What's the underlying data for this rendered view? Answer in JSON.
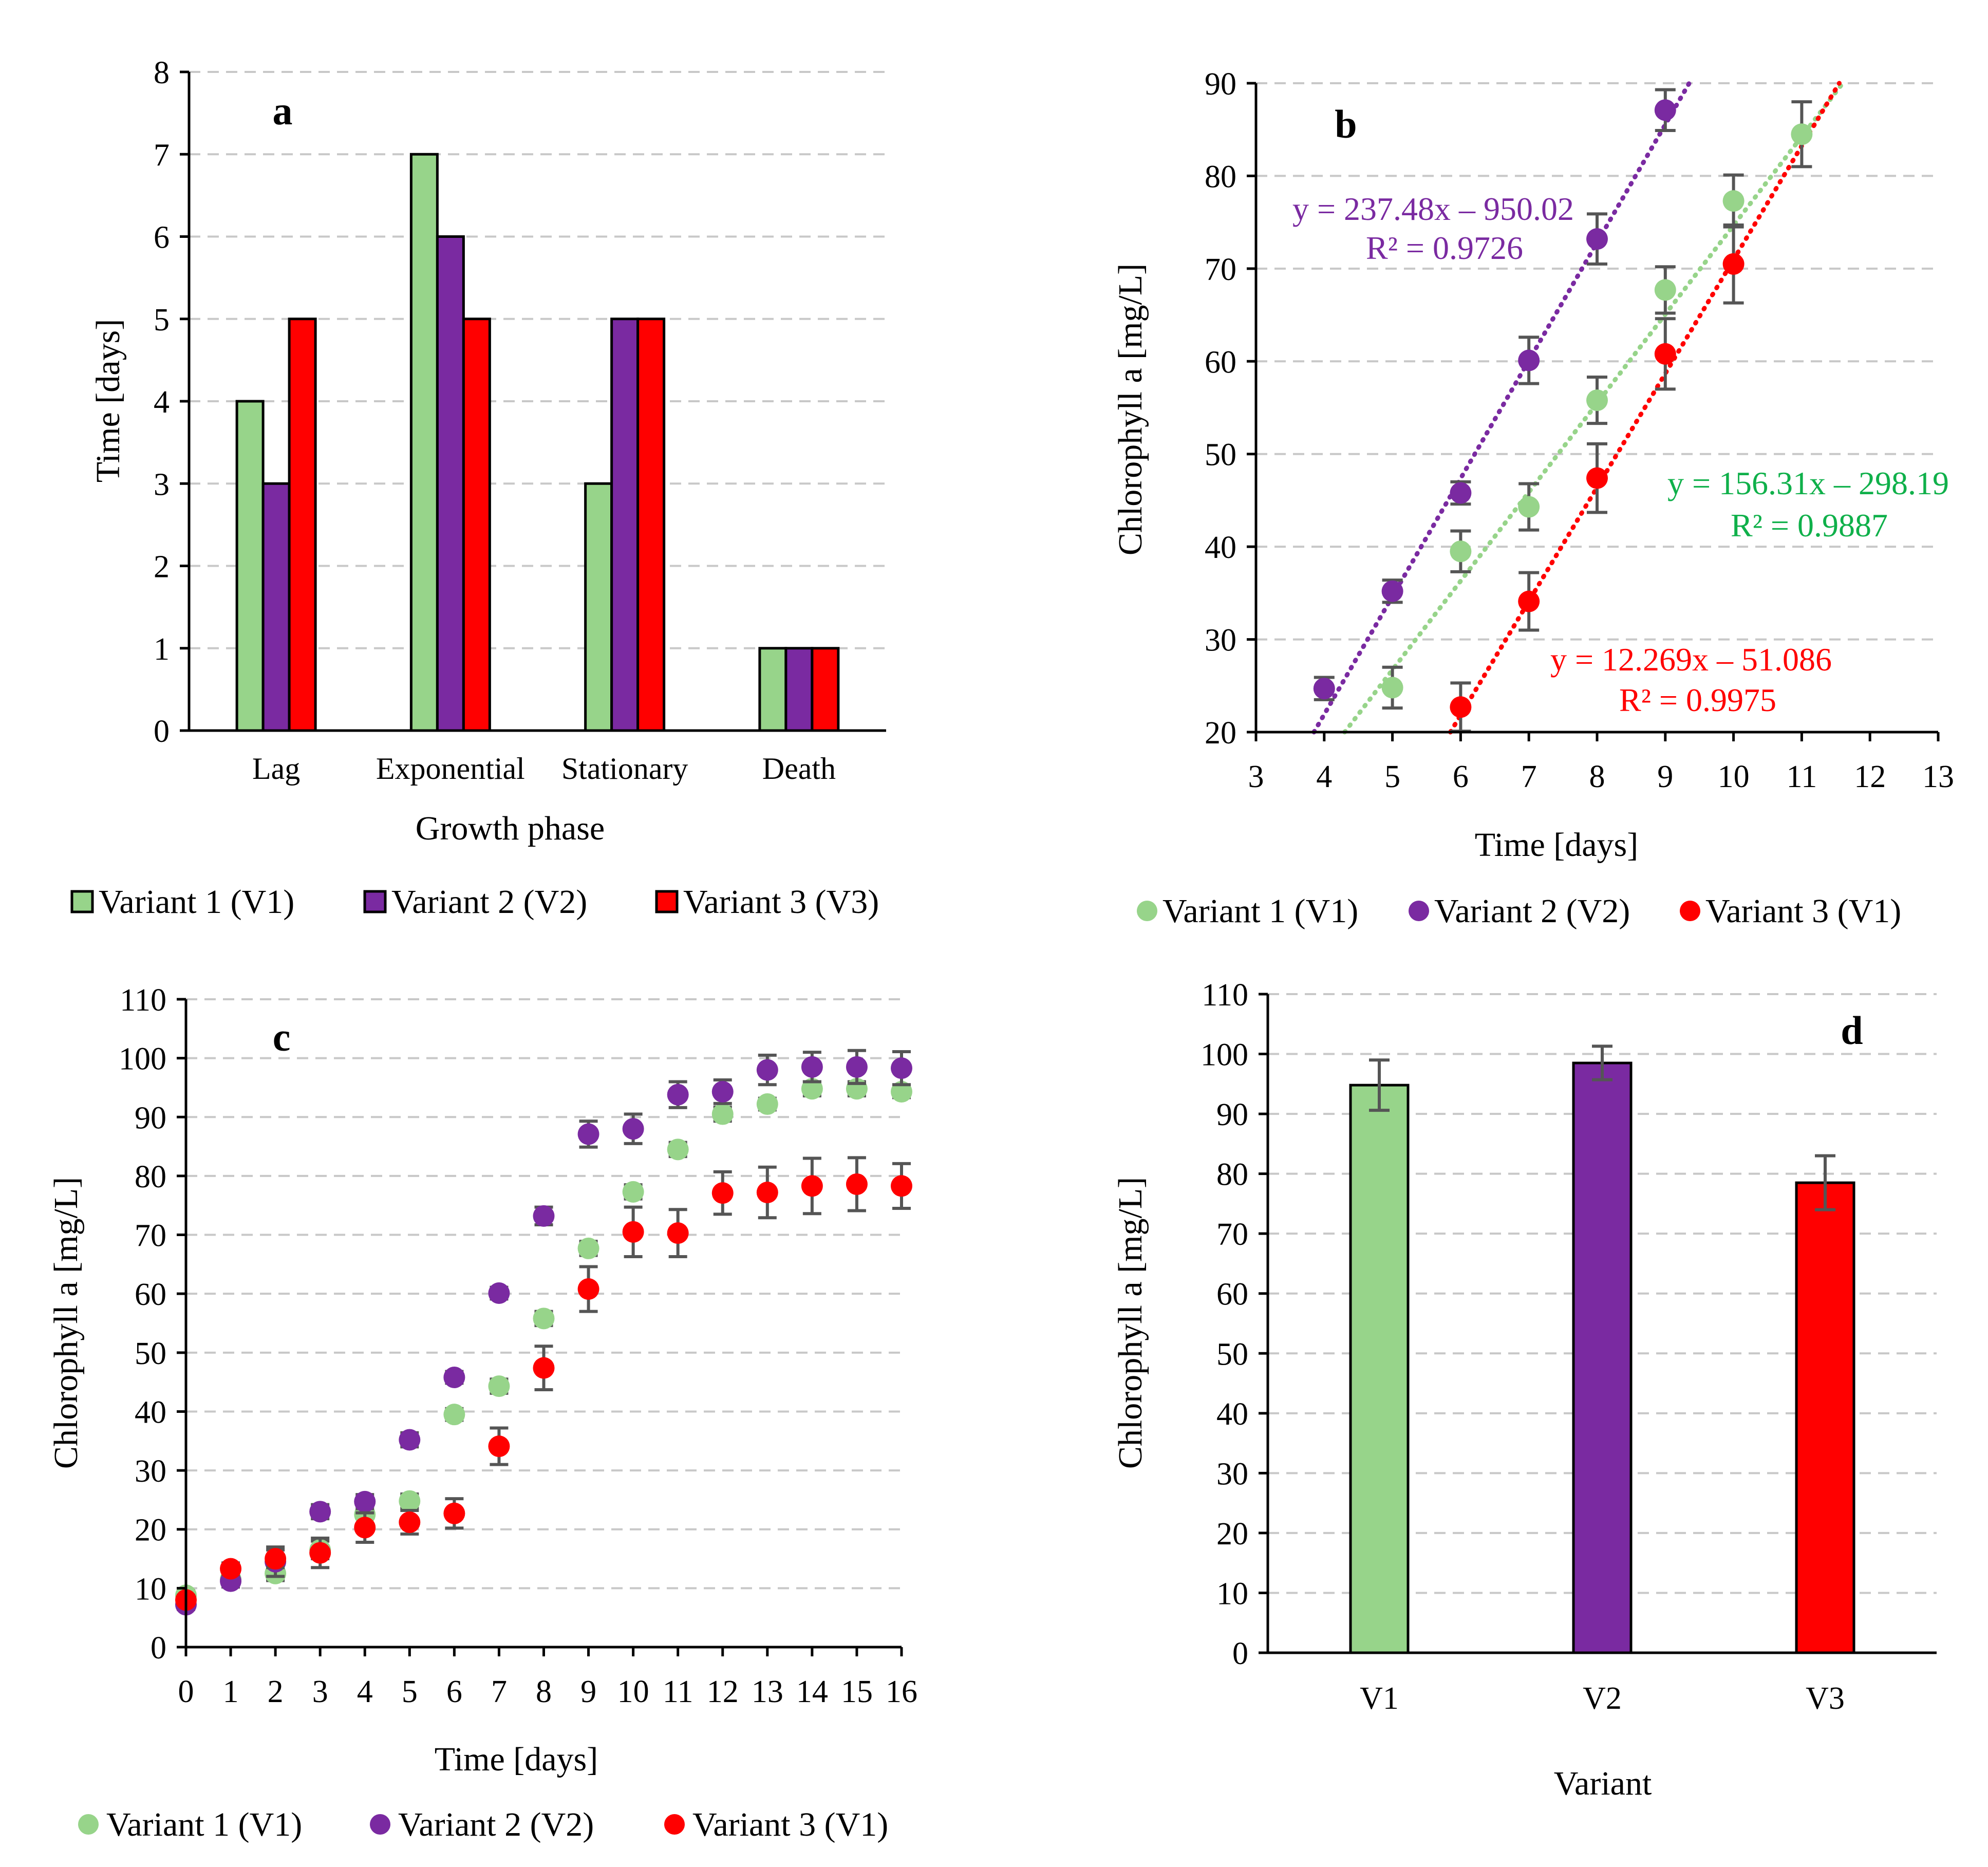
{
  "colors": {
    "v1": "#97d48a",
    "v2": "#7a2aa1",
    "v3": "#ff0000",
    "green_text": "#0fb04a",
    "err": "#555555",
    "grid": "#c8c8c8"
  },
  "chart_data": [
    {
      "id": "a",
      "panel_label": "a",
      "type": "bar",
      "xlabel": "Growth phase",
      "ylabel": "Time [days]",
      "ylim": [
        0,
        8
      ],
      "yticks": [
        "0",
        "1",
        "2",
        "3",
        "4",
        "5",
        "6",
        "7",
        "8"
      ],
      "categories": [
        "Lag",
        "Exponential",
        "Stationary",
        "Death"
      ],
      "series": [
        {
          "name": "Variant 1 (V1)",
          "values": [
            4,
            7,
            3,
            1
          ]
        },
        {
          "name": "Variant 2 (V2)",
          "values": [
            3,
            6,
            5,
            1
          ]
        },
        {
          "name": "Variant 3 (V3)",
          "values": [
            5,
            5,
            5,
            1
          ]
        }
      ],
      "legend": [
        "Variant 1 (V1)",
        "Variant 2 (V2)",
        "Variant 3 (V3)"
      ]
    },
    {
      "id": "b",
      "panel_label": "b",
      "type": "scatter",
      "xlabel": "Time [days]",
      "ylabel": "Chlorophyll a [mg/L]",
      "xlim": [
        3,
        13
      ],
      "ylim": [
        20,
        90
      ],
      "xticks": [
        "3",
        "4",
        "5",
        "6",
        "7",
        "8",
        "9",
        "10",
        "11",
        "12",
        "13"
      ],
      "yticks": [
        "20",
        "30",
        "40",
        "50",
        "60",
        "70",
        "80",
        "90"
      ],
      "series": [
        {
          "name": "Variant 1 (V1)",
          "x": [
            5,
            6,
            7,
            8,
            9,
            10,
            11
          ],
          "y": [
            24.8,
            39.5,
            44.3,
            55.8,
            67.7,
            77.3,
            84.5
          ],
          "err": [
            2.2,
            2.2,
            2.5,
            2.5,
            2.5,
            2.8,
            3.5
          ],
          "trend": [
            4.3,
            11.6
          ]
        },
        {
          "name": "Variant 2 (V2)",
          "x": [
            4,
            5,
            6,
            7,
            8,
            9
          ],
          "y": [
            24.7,
            35.2,
            45.8,
            60.1,
            73.2,
            87.1
          ],
          "err": [
            1.2,
            1.2,
            1.2,
            2.5,
            2.7,
            2.2
          ],
          "trend": [
            3.85,
            9.35
          ]
        },
        {
          "name": "Variant 3 (V1)",
          "x": [
            6,
            7,
            8,
            9,
            10
          ],
          "y": [
            22.7,
            34.1,
            47.4,
            60.8,
            70.5
          ],
          "err": [
            2.6,
            3.1,
            3.7,
            3.8,
            4.2
          ],
          "trend": [
            5.85,
            11.55
          ]
        }
      ],
      "equations": [
        {
          "line1": "y = 237.48x – 950.02",
          "line2": "R² = 0.9726"
        },
        {
          "line1": "y = 156.31x – 298.19",
          "line2": "R² = 0.9887"
        },
        {
          "line1": "y = 12.269x – 51.086",
          "line2": "R² = 0.9975"
        }
      ],
      "legend": [
        "Variant 1 (V1)",
        "Variant 2 (V2)",
        "Variant 3 (V1)"
      ]
    },
    {
      "id": "c",
      "panel_label": "c",
      "type": "scatter",
      "xlabel": "Time [days]",
      "ylabel": "Chlorophyll a [mg/L]",
      "xlim": [
        0,
        16
      ],
      "ylim": [
        0,
        110
      ],
      "xticks": [
        "0",
        "1",
        "2",
        "3",
        "4",
        "5",
        "6",
        "7",
        "8",
        "9",
        "10",
        "11",
        "12",
        "13",
        "14",
        "15",
        "16"
      ],
      "yticks": [
        "0",
        "10",
        "20",
        "30",
        "40",
        "50",
        "60",
        "70",
        "80",
        "90",
        "100",
        "110"
      ],
      "series": [
        {
          "name": "Variant 1 (V1)",
          "x": [
            0,
            1,
            2,
            3,
            4,
            5,
            6,
            7,
            8,
            9,
            10,
            11,
            12,
            13,
            14,
            15,
            16
          ],
          "y": [
            8.8,
            11.5,
            12.5,
            16.5,
            22.5,
            24.8,
            39.5,
            44.3,
            55.8,
            67.7,
            77.3,
            84.5,
            90.5,
            92.2,
            94.8,
            94.8,
            94.3
          ],
          "err": [
            0.8,
            1.0,
            1.2,
            1.5,
            1.5,
            1.2,
            1.0,
            1.2,
            1.2,
            1.2,
            1.2,
            1.2,
            1.2,
            1.0,
            1.2,
            1.2,
            1.0
          ]
        },
        {
          "name": "Variant 2 (V2)",
          "x": [
            0,
            1,
            2,
            3,
            4,
            5,
            6,
            7,
            8,
            9,
            10,
            11,
            12,
            13,
            14,
            15,
            16
          ],
          "y": [
            7.2,
            11.2,
            14.5,
            23.0,
            24.7,
            35.2,
            45.8,
            60.1,
            73.2,
            87.1,
            88.0,
            93.8,
            94.3,
            98.0,
            98.5,
            98.5,
            98.3
          ],
          "err": [
            0.8,
            1.0,
            2.5,
            1.2,
            1.2,
            1.2,
            1.0,
            1.0,
            1.5,
            2.2,
            2.5,
            2.2,
            2.0,
            2.5,
            2.5,
            2.8,
            2.8
          ]
        },
        {
          "name": "Variant 3 (V1)",
          "x": [
            0,
            1,
            2,
            3,
            4,
            5,
            6,
            7,
            8,
            9,
            10,
            11,
            12,
            13,
            14,
            15,
            16
          ],
          "y": [
            8.0,
            13.3,
            15.0,
            16.0,
            20.3,
            21.2,
            22.7,
            34.1,
            47.4,
            60.8,
            70.5,
            70.3,
            77.1,
            77.2,
            78.3,
            78.6,
            78.3
          ],
          "err": [
            0.8,
            1.0,
            1.5,
            2.5,
            2.5,
            2.0,
            2.5,
            3.1,
            3.7,
            3.8,
            4.2,
            4.0,
            3.6,
            4.3,
            4.7,
            4.5,
            3.8
          ]
        }
      ],
      "legend": [
        "Variant 1 (V1)",
        "Variant 2 (V2)",
        "Variant 3 (V1)"
      ]
    },
    {
      "id": "d",
      "panel_label": "d",
      "type": "bar",
      "xlabel": "Variant",
      "ylabel": "Chlorophyll a [mg/L]",
      "ylim": [
        0,
        110
      ],
      "yticks": [
        "0",
        "10",
        "20",
        "30",
        "40",
        "50",
        "60",
        "70",
        "80",
        "90",
        "100",
        "110"
      ],
      "categories": [
        "V1",
        "V2",
        "V3"
      ],
      "values": [
        94.8,
        98.5,
        78.5
      ],
      "err": [
        4.2,
        2.8,
        4.5
      ]
    }
  ]
}
